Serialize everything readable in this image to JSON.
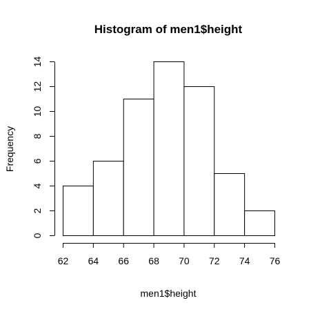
{
  "chart_data": {
    "type": "bar",
    "title": "Histogram of men1$height",
    "xlabel": "men1$height",
    "ylabel": "Frequency",
    "bins": [
      {
        "start": 62,
        "end": 64,
        "count": 4
      },
      {
        "start": 64,
        "end": 66,
        "count": 6
      },
      {
        "start": 66,
        "end": 68,
        "count": 11
      },
      {
        "start": 68,
        "end": 70,
        "count": 14
      },
      {
        "start": 70,
        "end": 72,
        "count": 12
      },
      {
        "start": 72,
        "end": 74,
        "count": 5
      },
      {
        "start": 74,
        "end": 76,
        "count": 2
      }
    ],
    "x_ticks": [
      62,
      64,
      66,
      68,
      70,
      72,
      74,
      76
    ],
    "y_ticks": [
      0,
      2,
      4,
      6,
      8,
      10,
      12,
      14
    ],
    "xlim": [
      62,
      76
    ],
    "ylim": [
      0,
      14
    ],
    "grid": false,
    "legend": "none"
  }
}
